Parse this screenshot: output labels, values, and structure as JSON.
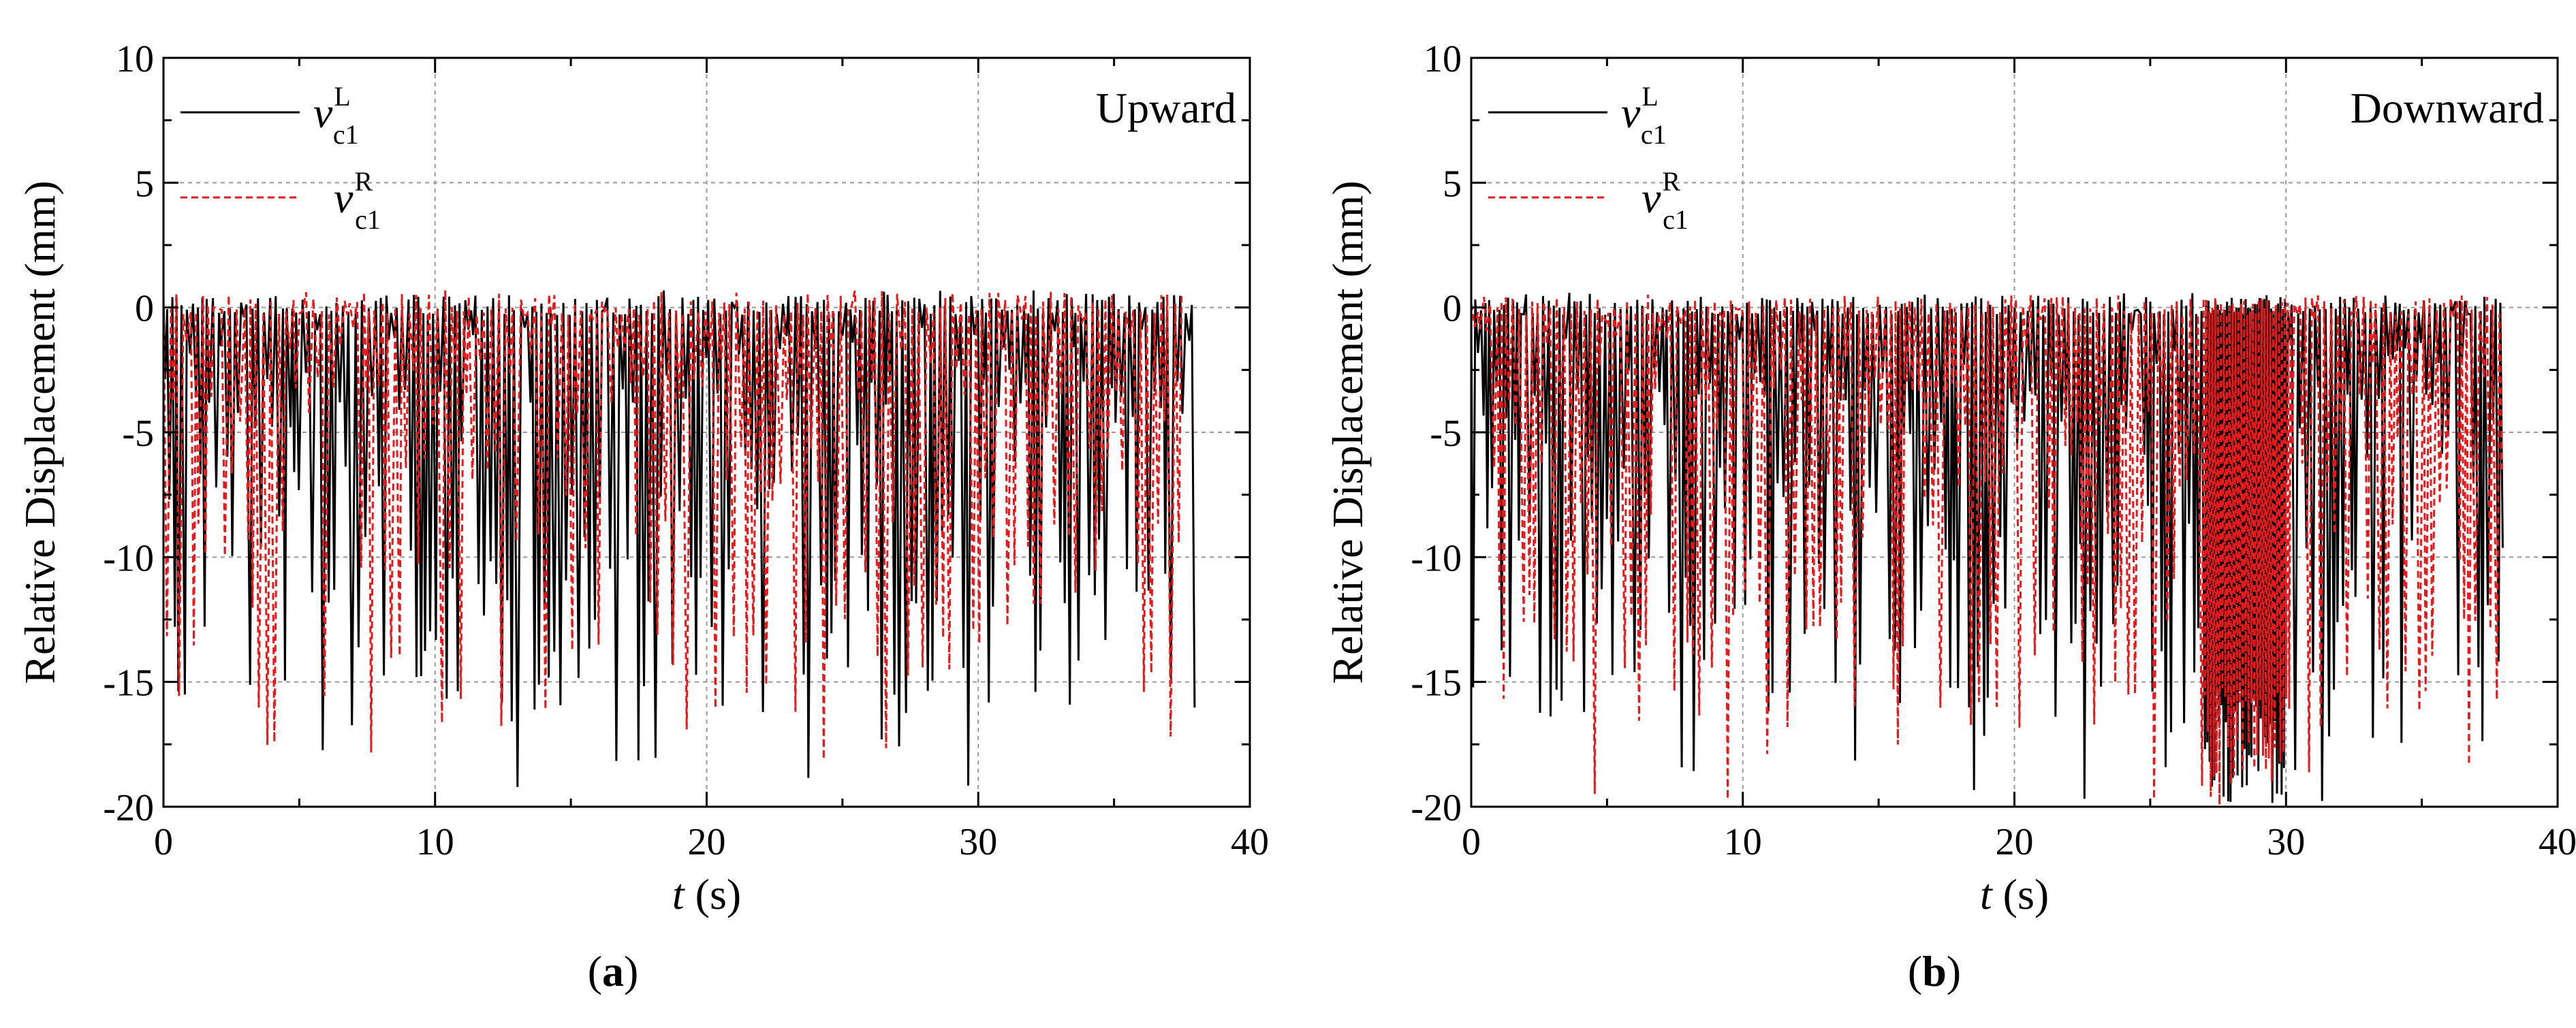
{
  "chart_data": [
    {
      "type": "line",
      "panel": "a",
      "annotation": "Upward",
      "xlabel_var": "t",
      "xlabel_unit": "(s)",
      "ylabel": "Relative Displacement (mm)",
      "xlim": [
        0,
        40
      ],
      "ylim": [
        -20,
        10
      ],
      "xticks": [
        0,
        10,
        20,
        30,
        40
      ],
      "yticks": [
        -20,
        -15,
        -10,
        -5,
        0,
        5,
        10
      ],
      "grid": true,
      "legend_position": "top-left",
      "series": [
        {
          "name": "v_c1^L",
          "base": "v",
          "sub": "c1",
          "sup": "L",
          "color": "#000000",
          "style": "solid",
          "t_end": 38.0,
          "n": 380,
          "seed": 11,
          "min": -19.3,
          "max": 0.7,
          "dense_window": null
        },
        {
          "name": "v_c1^R",
          "base": "v",
          "sub": "c1",
          "sup": "R",
          "color": "#e41a1c",
          "style": "dashed",
          "t_end": 37.6,
          "n": 300,
          "seed": 23,
          "min": -18.2,
          "max": 0.8,
          "dense_window": null
        }
      ]
    },
    {
      "type": "line",
      "panel": "b",
      "annotation": "Downward",
      "xlabel_var": "t",
      "xlabel_unit": "(s)",
      "ylabel": "Relative Displacement (mm)",
      "xlim": [
        0,
        40
      ],
      "ylim": [
        -20,
        10
      ],
      "xticks": [
        0,
        10,
        20,
        30,
        40
      ],
      "yticks": [
        -20,
        -15,
        -10,
        -5,
        0,
        5,
        10
      ],
      "grid": true,
      "legend_position": "top-left",
      "series": [
        {
          "name": "v_c1^L",
          "base": "v",
          "sub": "c1",
          "sup": "L",
          "color": "#000000",
          "style": "solid",
          "t_end": 38.0,
          "n": 400,
          "seed": 37,
          "min": -20.0,
          "max": 0.6,
          "dense_window": [
            27.0,
            30.0
          ]
        },
        {
          "name": "v_c1^R",
          "base": "v",
          "sub": "c1",
          "sup": "R",
          "color": "#e41a1c",
          "style": "dashed",
          "t_end": 38.0,
          "n": 320,
          "seed": 53,
          "min": -20.0,
          "max": 0.6,
          "dense_window": [
            26.8,
            30.2
          ]
        }
      ]
    }
  ],
  "panels": [
    {
      "label": "a"
    },
    {
      "label": "b"
    }
  ]
}
